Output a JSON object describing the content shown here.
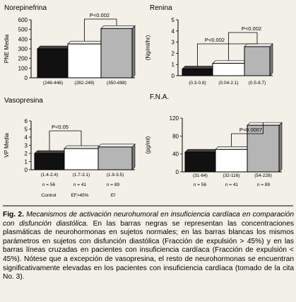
{
  "chart_data": [
    {
      "type": "bar",
      "title": "Norepinefrina",
      "ylabel": "PNE Media",
      "ylim": [
        0,
        600
      ],
      "yticks": [
        0,
        100,
        200,
        300,
        400,
        500,
        600
      ],
      "categories": [
        "Control",
        "EF>45%",
        "Ef"
      ],
      "values": [
        300,
        350,
        510
      ],
      "ranges": [
        "(246-446)",
        "(282-249)",
        "(350-698)"
      ],
      "annotation": "P<0.002"
    },
    {
      "type": "bar",
      "title": "Renina",
      "ylabel": "(Ng/ml/hr)",
      "ylim": [
        0,
        5
      ],
      "yticks": [
        0,
        1,
        2,
        3,
        4,
        5
      ],
      "categories": [
        "Control",
        "EF>45%",
        "Ef"
      ],
      "values": [
        0.6,
        1.1,
        2.6
      ],
      "ranges": [
        "(0.3-0.8)",
        "(0.04-2.1)",
        "(0.5-8.7)"
      ],
      "annotations": [
        "P<0.002",
        "P<0.002"
      ]
    },
    {
      "type": "bar",
      "title": "Vasopresina",
      "ylabel": "VP Media",
      "ylim": [
        0,
        6
      ],
      "yticks": [
        0,
        1,
        2,
        3,
        4,
        5,
        6
      ],
      "categories": [
        "Control",
        "EF>45%",
        "Ef"
      ],
      "values": [
        2.0,
        2.6,
        2.8
      ],
      "ranges": [
        "(1.4-2.4)",
        "(1.7-3.1)",
        "(1.9-3.5)"
      ],
      "annotation": "P<0.05"
    },
    {
      "type": "bar",
      "title": "F.N.A.",
      "ylabel": "(pg/ml)",
      "ylim": [
        0,
        120
      ],
      "yticks": [
        0,
        40,
        80,
        120
      ],
      "categories": [
        "Control",
        "EF>45%",
        "Ef"
      ],
      "values": [
        44,
        50,
        104
      ],
      "ranges": [
        "(31-64)",
        "(32-116)",
        "(54-228)"
      ],
      "annotation": "P<0.0007"
    }
  ],
  "groups": {
    "n": [
      "n = 56",
      "n = 41",
      "n = 89"
    ],
    "names": [
      "Control",
      "EF>45%",
      "Ef"
    ]
  },
  "colors": {
    "control": "#111111",
    "ef45": "#ffffff",
    "ef": "#b5b5b5",
    "background": "#f3f0e8"
  },
  "caption": {
    "label": "Fig. 2.",
    "title": "Mecanismos de activación neurohumoral en insuficiencia cardíaca en comparación con disfunción diastólica.",
    "body": "En las barras negras se representan las concentraciones plasmáticas de neurohormonas en sujetos normales; en las barras blancas los mismos parámetros en sujetos con disfunción diastólica (Fracción de expulsión > 45%) y en las barras líneas cruzadas en pacientes con insuficiencia cardíaca (Fracción de expulsión < 45%). Nótese que a excepción de vasopresina, el resto de neurohormonas se encuentran significativamente elevadas en los pacientes con insuficiencia cardíaca (tomado de la cita No. 3)."
  }
}
